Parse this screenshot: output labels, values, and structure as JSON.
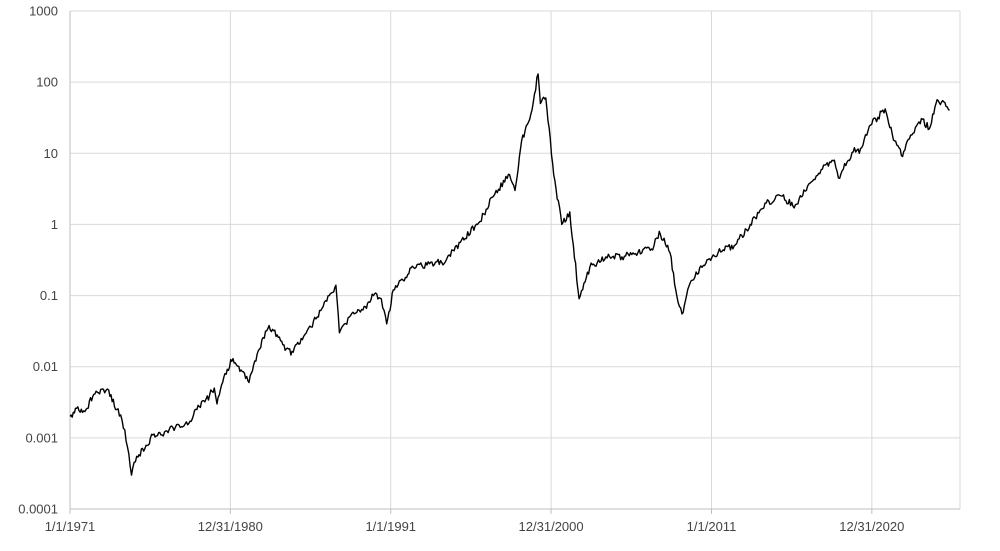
{
  "chart_data": {
    "type": "line",
    "title": "",
    "xlabel": "",
    "ylabel": "",
    "y_scale": "log",
    "ylim": [
      0.0001,
      1000
    ],
    "xlim": [
      "1971-01-01",
      "2026-07-01"
    ],
    "grid": true,
    "legend": "none",
    "line_color": "#000000",
    "y_ticks": [
      "0.0001",
      "0.001",
      "0.01",
      "0.1",
      "1",
      "10",
      "100",
      "1000"
    ],
    "x_ticks": [
      {
        "label": "1/1/1971",
        "date": "1971-01-01"
      },
      {
        "label": "12/31/1980",
        "date": "1980-12-31"
      },
      {
        "label": "1/1/1991",
        "date": "1991-01-01"
      },
      {
        "label": "12/31/2000",
        "date": "2000-12-31"
      },
      {
        "label": "1/1/2011",
        "date": "2011-01-01"
      },
      {
        "label": "12/31/2020",
        "date": "2020-12-31"
      }
    ],
    "series": [
      {
        "points": [
          [
            "1971-01-01",
            0.002
          ],
          [
            "1971-06-01",
            0.0026
          ],
          [
            "1972-01-01",
            0.0025
          ],
          [
            "1972-06-01",
            0.0038
          ],
          [
            "1972-12-01",
            0.0048
          ],
          [
            "1973-03-01",
            0.0043
          ],
          [
            "1973-06-01",
            0.0047
          ],
          [
            "1973-12-01",
            0.0025
          ],
          [
            "1974-03-01",
            0.0021
          ],
          [
            "1974-06-01",
            0.0013
          ],
          [
            "1974-09-01",
            0.0006
          ],
          [
            "1974-11-01",
            0.0003
          ],
          [
            "1975-03-01",
            0.00055
          ],
          [
            "1975-09-01",
            0.0007
          ],
          [
            "1976-03-01",
            0.0011
          ],
          [
            "1976-09-01",
            0.0011
          ],
          [
            "1977-06-01",
            0.0014
          ],
          [
            "1978-06-01",
            0.0016
          ],
          [
            "1978-12-01",
            0.0025
          ],
          [
            "1979-06-01",
            0.0032
          ],
          [
            "1980-01-01",
            0.005
          ],
          [
            "1980-03-01",
            0.003
          ],
          [
            "1980-09-01",
            0.008
          ],
          [
            "1981-03-01",
            0.013
          ],
          [
            "1981-09-01",
            0.009
          ],
          [
            "1982-03-01",
            0.006
          ],
          [
            "1982-09-01",
            0.015
          ],
          [
            "1983-06-01",
            0.038
          ],
          [
            "1983-12-01",
            0.028
          ],
          [
            "1984-06-01",
            0.017
          ],
          [
            "1984-12-01",
            0.016
          ],
          [
            "1985-06-01",
            0.025
          ],
          [
            "1986-06-01",
            0.05
          ],
          [
            "1987-03-01",
            0.1
          ],
          [
            "1987-08-01",
            0.14
          ],
          [
            "1987-10-20",
            0.03
          ],
          [
            "1988-06-01",
            0.05
          ],
          [
            "1989-06-01",
            0.07
          ],
          [
            "1989-12-01",
            0.1
          ],
          [
            "1990-06-01",
            0.09
          ],
          [
            "1990-10-01",
            0.04
          ],
          [
            "1991-03-01",
            0.12
          ],
          [
            "1991-12-01",
            0.18
          ],
          [
            "1992-06-01",
            0.25
          ],
          [
            "1993-06-01",
            0.28
          ],
          [
            "1994-06-01",
            0.3
          ],
          [
            "1995-06-01",
            0.6
          ],
          [
            "1996-06-01",
            1.0
          ],
          [
            "1997-06-01",
            2.5
          ],
          [
            "1998-06-01",
            5.0
          ],
          [
            "1998-10-01",
            3.0
          ],
          [
            "1999-03-01",
            15.0
          ],
          [
            "1999-09-01",
            30.0
          ],
          [
            "2000-03-10",
            130.0
          ],
          [
            "2000-05-01",
            50.0
          ],
          [
            "2000-09-01",
            60.0
          ],
          [
            "2001-03-01",
            5.0
          ],
          [
            "2001-09-01",
            1.0
          ],
          [
            "2002-03-01",
            1.5
          ],
          [
            "2002-10-01",
            0.09
          ],
          [
            "2003-06-01",
            0.25
          ],
          [
            "2004-06-01",
            0.35
          ],
          [
            "2005-06-01",
            0.35
          ],
          [
            "2006-06-01",
            0.4
          ],
          [
            "2007-06-01",
            0.5
          ],
          [
            "2007-10-01",
            0.8
          ],
          [
            "2008-06-01",
            0.4
          ],
          [
            "2008-12-01",
            0.08
          ],
          [
            "2009-03-01",
            0.055
          ],
          [
            "2009-09-01",
            0.15
          ],
          [
            "2010-06-01",
            0.25
          ],
          [
            "2011-06-01",
            0.4
          ],
          [
            "2012-06-01",
            0.5
          ],
          [
            "2013-06-01",
            1.0
          ],
          [
            "2014-06-01",
            2.0
          ],
          [
            "2015-06-01",
            2.5
          ],
          [
            "2016-02-01",
            1.8
          ],
          [
            "2016-12-01",
            3.0
          ],
          [
            "2017-12-01",
            6.0
          ],
          [
            "2018-09-01",
            8.0
          ],
          [
            "2018-12-01",
            4.5
          ],
          [
            "2019-12-01",
            12.0
          ],
          [
            "2020-03-20",
            10.0
          ],
          [
            "2020-12-01",
            25.0
          ],
          [
            "2021-11-01",
            42.0
          ],
          [
            "2022-06-01",
            15.0
          ],
          [
            "2022-12-01",
            9.0
          ],
          [
            "2023-06-01",
            18.0
          ],
          [
            "2024-03-01",
            30.0
          ],
          [
            "2024-08-01",
            22.0
          ],
          [
            "2025-01-01",
            50.0
          ],
          [
            "2025-06-01",
            55.0
          ],
          [
            "2025-11-01",
            40.0
          ]
        ]
      }
    ]
  }
}
